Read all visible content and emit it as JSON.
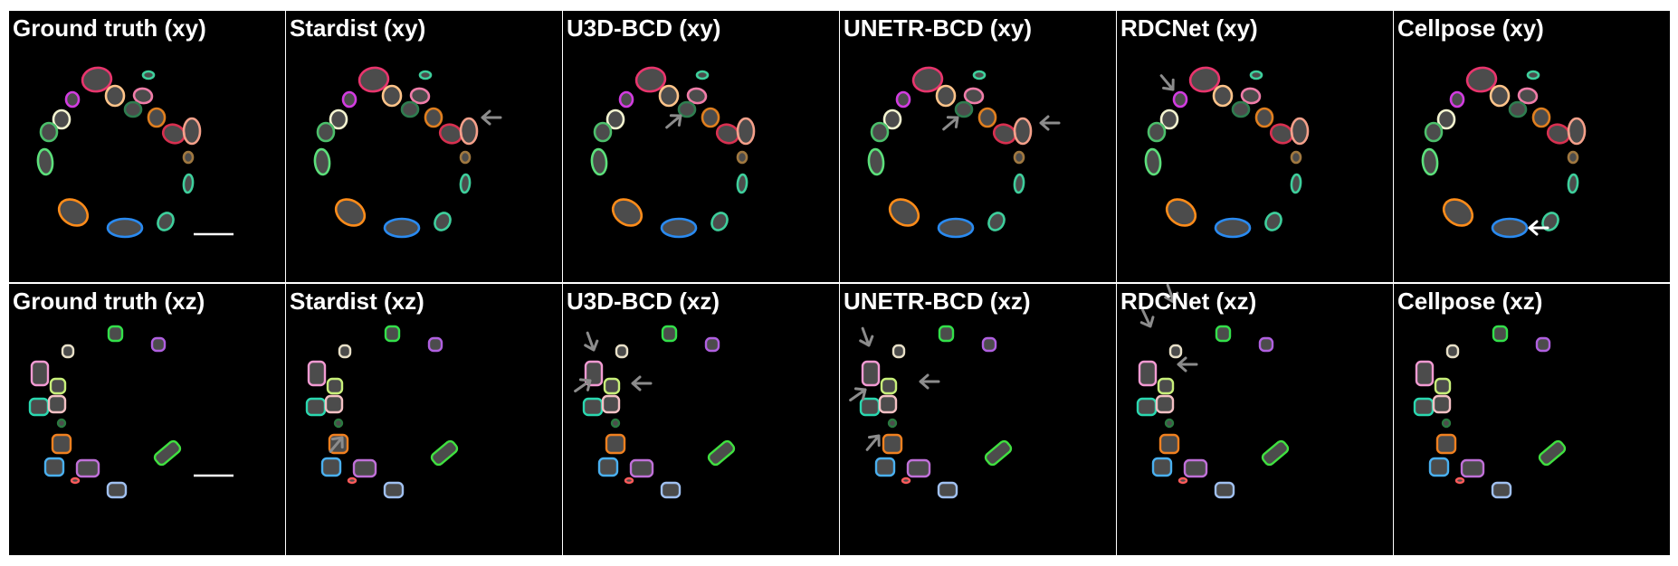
{
  "figure": {
    "panels": [
      {
        "title": "Ground truth (xy)",
        "row": "xy",
        "method": "Ground truth"
      },
      {
        "title": "Stardist (xy)",
        "row": "xy",
        "method": "Stardist"
      },
      {
        "title": "U3D-BCD (xy)",
        "row": "xy",
        "method": "U3D-BCD"
      },
      {
        "title": "UNETR-BCD (xy)",
        "row": "xy",
        "method": "UNETR-BCD"
      },
      {
        "title": "RDCNet (xy)",
        "row": "xy",
        "method": "RDCNet"
      },
      {
        "title": "Cellpose (xy)",
        "row": "xy",
        "method": "Cellpose"
      },
      {
        "title": "Ground truth (xz)",
        "row": "xz",
        "method": "Ground truth"
      },
      {
        "title": "Stardist (xz)",
        "row": "xz",
        "method": "Stardist"
      },
      {
        "title": "U3D-BCD (xz)",
        "row": "xz",
        "method": "U3D-BCD"
      },
      {
        "title": "UNETR-BCD (xz)",
        "row": "xz",
        "method": "UNETR-BCD"
      },
      {
        "title": "RDCNet (xz)",
        "row": "xz",
        "method": "RDCNet"
      },
      {
        "title": "Cellpose (xz)",
        "row": "xz",
        "method": "Cellpose"
      }
    ],
    "colors": {
      "panel_background": "#000000",
      "separator": "#ffffff",
      "title_text": "#ffffff",
      "nucleus_fill": "#8a8a8a",
      "arrow_gray": "#8c8c8c",
      "arrow_white": "#ffffff",
      "scale_bar": "#ffffff"
    },
    "scale_bar_in_panels": [
      "Ground truth (xy)",
      "Ground truth (xz)"
    ],
    "arrows_in_panels": [
      "Stardist (xy)",
      "U3D-BCD (xy)",
      "UNETR-BCD (xy)",
      "RDCNet (xy)",
      "Cellpose (xy)",
      "Stardist (xz)",
      "U3D-BCD (xz)",
      "UNETR-BCD (xz)",
      "RDCNet (xz)"
    ]
  }
}
